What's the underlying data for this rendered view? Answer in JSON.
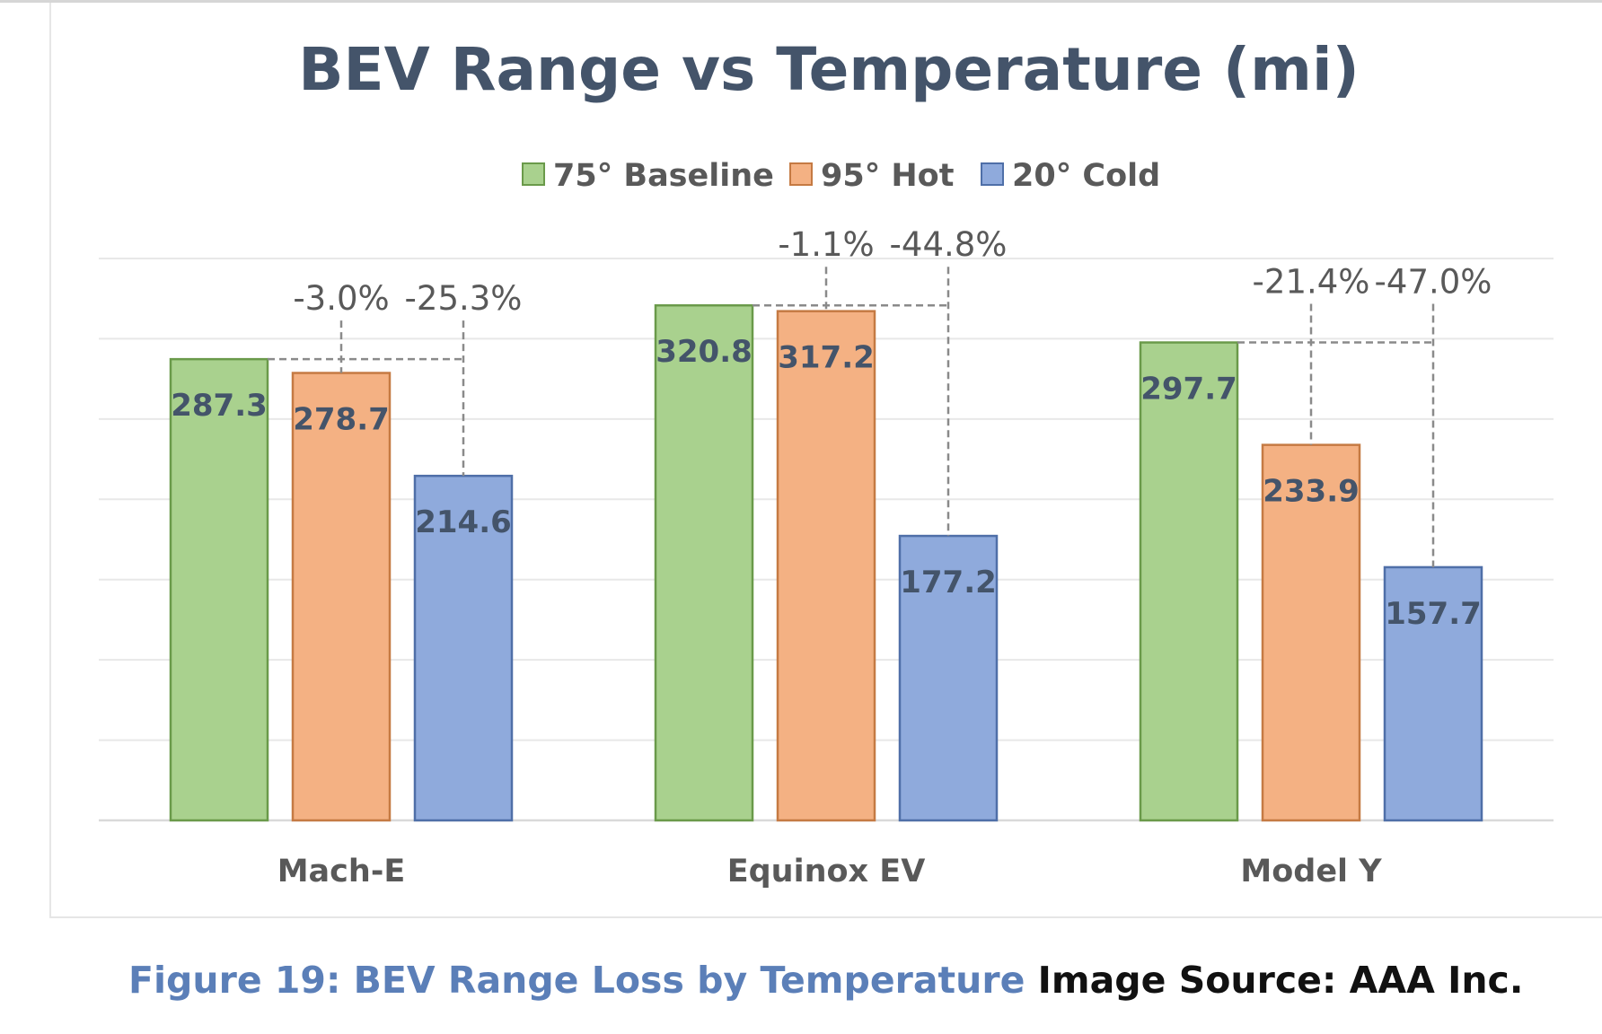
{
  "chart_data": {
    "type": "bar",
    "title": "BEV Range vs Temperature (mi)",
    "categories": [
      "Mach-E",
      "Equinox EV",
      "Model Y"
    ],
    "series": [
      {
        "name": "75° Baseline",
        "color": "#a9d18e",
        "stroke": "#6a9a4a",
        "values": [
          287.3,
          320.8,
          297.7
        ],
        "labels": [
          "287.3",
          "320.8",
          "297.7"
        ]
      },
      {
        "name": "95° Hot",
        "color": "#f4b183",
        "stroke": "#c57a43",
        "values": [
          278.7,
          317.2,
          233.9
        ],
        "labels": [
          "278.7",
          "317.2",
          "233.9"
        ]
      },
      {
        "name": "20° Cold",
        "color": "#8faadc",
        "stroke": "#4f6fa8",
        "values": [
          214.6,
          177.2,
          157.7
        ],
        "labels": [
          "214.6",
          "177.2",
          "157.7"
        ]
      }
    ],
    "change_vs_baseline": [
      {
        "category": "Mach-E",
        "hot": "-3.0%",
        "cold": "-25.3%"
      },
      {
        "category": "Equinox EV",
        "hot": "-1.1%",
        "cold": "-44.8%"
      },
      {
        "category": "Model Y",
        "hot": "-21.4%",
        "cold": "-47.0%"
      }
    ],
    "ylim": [
      0,
      350
    ],
    "grid": true,
    "legend": "top-center",
    "xlabel": "",
    "ylabel": ""
  },
  "caption": {
    "figure": "Figure 19: BEV Range Loss by Temperature",
    "source": "Image Source: AAA Inc."
  }
}
